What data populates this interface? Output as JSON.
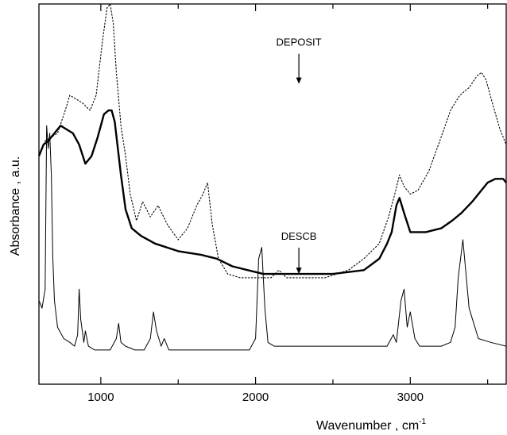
{
  "chart_data": {
    "type": "line",
    "title": "",
    "xlabel": "Wavenumber , cm",
    "xlabel_superscript": "-1",
    "ylabel": "Absorbance , a.u.",
    "xlim": [
      600,
      3620
    ],
    "ylim": [
      0,
      1
    ],
    "x_ticks": [
      1000,
      2000,
      3000
    ],
    "x_tick_labels": [
      "1000",
      "2000",
      "3000"
    ],
    "y_tick_labels": false,
    "grid": false,
    "annotations": [
      {
        "text": "DEPOSIT",
        "x": 2280,
        "y": 0.89,
        "arrow_to_y": 0.79
      },
      {
        "text": "DESCB",
        "x": 2280,
        "y": 0.38,
        "arrow_to_y": 0.29
      }
    ],
    "series": [
      {
        "style": "dotted",
        "x": [
          600,
          640,
          680,
          720,
          770,
          800,
          840,
          880,
          930,
          970,
          1010,
          1040,
          1060,
          1080,
          1100,
          1130,
          1160,
          1190,
          1230,
          1270,
          1320,
          1370,
          1430,
          1500,
          1560,
          1620,
          1660,
          1690,
          1720,
          1760,
          1820,
          1900,
          2000,
          2100,
          2150,
          2200,
          2300,
          2450,
          2600,
          2700,
          2800,
          2860,
          2900,
          2930,
          2960,
          3000,
          3050,
          3120,
          3200,
          3260,
          3320,
          3380,
          3430,
          3460,
          3490,
          3530,
          3580,
          3620
        ],
        "y": [
          0.6,
          0.64,
          0.65,
          0.66,
          0.72,
          0.76,
          0.75,
          0.74,
          0.72,
          0.76,
          0.9,
          0.99,
          1.0,
          0.95,
          0.82,
          0.68,
          0.6,
          0.5,
          0.43,
          0.48,
          0.44,
          0.47,
          0.42,
          0.38,
          0.41,
          0.47,
          0.5,
          0.53,
          0.42,
          0.33,
          0.29,
          0.28,
          0.28,
          0.28,
          0.3,
          0.28,
          0.28,
          0.28,
          0.3,
          0.33,
          0.37,
          0.44,
          0.5,
          0.55,
          0.52,
          0.5,
          0.51,
          0.56,
          0.65,
          0.72,
          0.76,
          0.78,
          0.81,
          0.82,
          0.8,
          0.74,
          0.67,
          0.63
        ]
      },
      {
        "style": "solid-thick",
        "x": [
          600,
          630,
          660,
          700,
          740,
          780,
          820,
          860,
          900,
          940,
          980,
          1020,
          1050,
          1070,
          1090,
          1110,
          1130,
          1160,
          1200,
          1260,
          1350,
          1500,
          1650,
          1750,
          1850,
          1950,
          2050,
          2150,
          2300,
          2500,
          2700,
          2800,
          2850,
          2880,
          2910,
          2930,
          2960,
          3000,
          3100,
          3200,
          3270,
          3330,
          3400,
          3460,
          3500,
          3550,
          3600,
          3620
        ],
        "y": [
          0.6,
          0.63,
          0.64,
          0.66,
          0.68,
          0.67,
          0.66,
          0.63,
          0.58,
          0.6,
          0.65,
          0.71,
          0.72,
          0.72,
          0.69,
          0.62,
          0.55,
          0.46,
          0.41,
          0.39,
          0.37,
          0.35,
          0.34,
          0.33,
          0.31,
          0.3,
          0.29,
          0.29,
          0.29,
          0.29,
          0.3,
          0.33,
          0.37,
          0.4,
          0.47,
          0.49,
          0.45,
          0.4,
          0.4,
          0.41,
          0.43,
          0.45,
          0.48,
          0.51,
          0.53,
          0.54,
          0.54,
          0.53
        ]
      },
      {
        "style": "solid-thin",
        "x": [
          600,
          620,
          640,
          650,
          660,
          670,
          680,
          690,
          700,
          720,
          760,
          800,
          830,
          850,
          860,
          870,
          890,
          900,
          920,
          960,
          1000,
          1060,
          1100,
          1115,
          1130,
          1160,
          1220,
          1280,
          1320,
          1340,
          1360,
          1390,
          1410,
          1440,
          1500,
          1600,
          1700,
          1800,
          1900,
          1960,
          2000,
          2020,
          2040,
          2060,
          2080,
          2120,
          2300,
          2500,
          2700,
          2850,
          2890,
          2910,
          2940,
          2960,
          2980,
          3000,
          3030,
          3060,
          3100,
          3200,
          3260,
          3290,
          3310,
          3340,
          3380,
          3440,
          3520,
          3620
        ],
        "y": [
          0.22,
          0.2,
          0.25,
          0.68,
          0.62,
          0.66,
          0.55,
          0.33,
          0.22,
          0.15,
          0.12,
          0.11,
          0.1,
          0.13,
          0.25,
          0.17,
          0.11,
          0.14,
          0.1,
          0.09,
          0.09,
          0.09,
          0.12,
          0.16,
          0.11,
          0.1,
          0.09,
          0.09,
          0.12,
          0.19,
          0.14,
          0.1,
          0.12,
          0.09,
          0.09,
          0.09,
          0.09,
          0.09,
          0.09,
          0.09,
          0.12,
          0.33,
          0.36,
          0.2,
          0.11,
          0.1,
          0.1,
          0.1,
          0.1,
          0.1,
          0.13,
          0.11,
          0.22,
          0.25,
          0.15,
          0.19,
          0.12,
          0.1,
          0.1,
          0.1,
          0.11,
          0.15,
          0.28,
          0.38,
          0.2,
          0.12,
          0.11,
          0.1
        ]
      }
    ]
  }
}
